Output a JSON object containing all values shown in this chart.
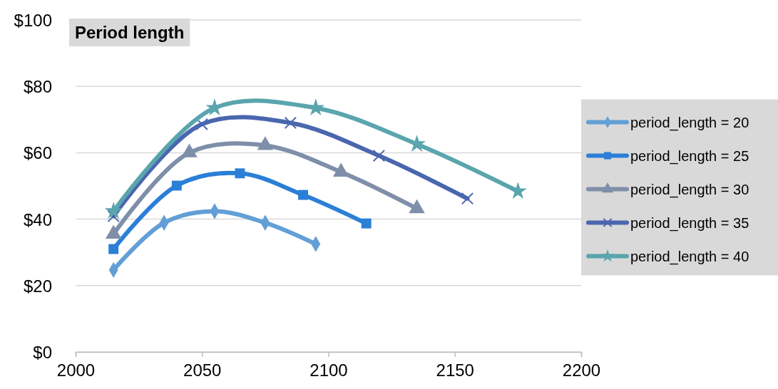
{
  "chart_data": {
    "type": "line",
    "title": "Period length",
    "xlim": [
      2000,
      2200
    ],
    "xticks": [
      2000,
      2050,
      2100,
      2150,
      2200
    ],
    "ylim": [
      0,
      100
    ],
    "yticks": [
      {
        "value": 0,
        "label": "$0"
      },
      {
        "value": 20,
        "label": "$20"
      },
      {
        "value": 40,
        "label": "$40"
      },
      {
        "value": 60,
        "label": "$60"
      },
      {
        "value": 80,
        "label": "$80"
      },
      {
        "value": 100,
        "label": "$100"
      }
    ],
    "grid": "y",
    "legend": "right",
    "series": [
      {
        "name": "period_length = 20",
        "color": "#629fd6",
        "marker": "diamond",
        "x": [
          2015,
          2035,
          2055,
          2075,
          2095
        ],
        "values": [
          24.7,
          38.9,
          42.4,
          38.9,
          32.5
        ]
      },
      {
        "name": "period_length = 25",
        "color": "#2b7fd6",
        "marker": "square",
        "x": [
          2015,
          2040,
          2065,
          2090,
          2115
        ],
        "values": [
          31.0,
          50.1,
          53.8,
          47.3,
          38.7
        ]
      },
      {
        "name": "period_length = 30",
        "color": "#7f8fa9",
        "marker": "triangle",
        "x": [
          2015,
          2045,
          2075,
          2105,
          2135
        ],
        "values": [
          35.5,
          60.0,
          62.2,
          54.2,
          43.2
        ]
      },
      {
        "name": "period_length = 35",
        "color": "#4a66ae",
        "marker": "cross",
        "x": [
          2015,
          2050,
          2085,
          2120,
          2155
        ],
        "values": [
          40.9,
          68.6,
          69.0,
          59.1,
          46.2
        ]
      },
      {
        "name": "period_length = 40",
        "color": "#5aa5ae",
        "marker": "star",
        "x": [
          2015,
          2055,
          2095,
          2135,
          2175
        ],
        "values": [
          42.4,
          73.5,
          73.5,
          62.6,
          48.4
        ]
      }
    ]
  }
}
